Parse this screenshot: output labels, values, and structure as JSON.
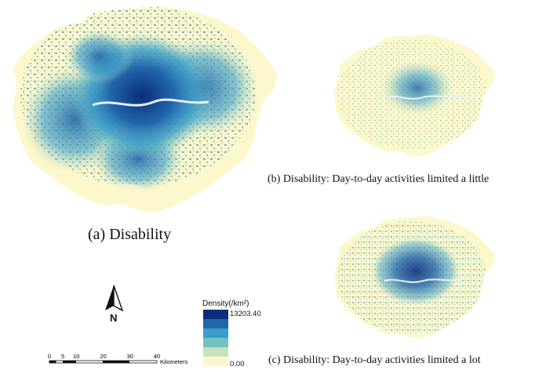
{
  "captions": {
    "a": "(a) Disability",
    "b": "(b) Disability: Day-to-day activities limited a little",
    "c": "(c) Disability: Day-to-day activities limited a lot"
  },
  "legend": {
    "title": "Density(/km²)",
    "max_label": "13203.40",
    "min_label": "0.00",
    "classes": [
      "#fdf8cc",
      "#c8e2be",
      "#70c3c1",
      "#3a9ec8",
      "#2166ac",
      "#0b2d7a"
    ]
  },
  "north_arrow": {
    "label": "N"
  },
  "scale_bar": {
    "ticks": [
      "0",
      "5",
      "10",
      "20",
      "30",
      "40"
    ],
    "unit": "Kilometers"
  },
  "colors": {
    "base_fill": "#fdf8cc",
    "light_teal": "#c8e2be",
    "mid_blue": "#3a9ec8",
    "dark_blue": "#2166ac",
    "navy": "#0b2d7a"
  }
}
